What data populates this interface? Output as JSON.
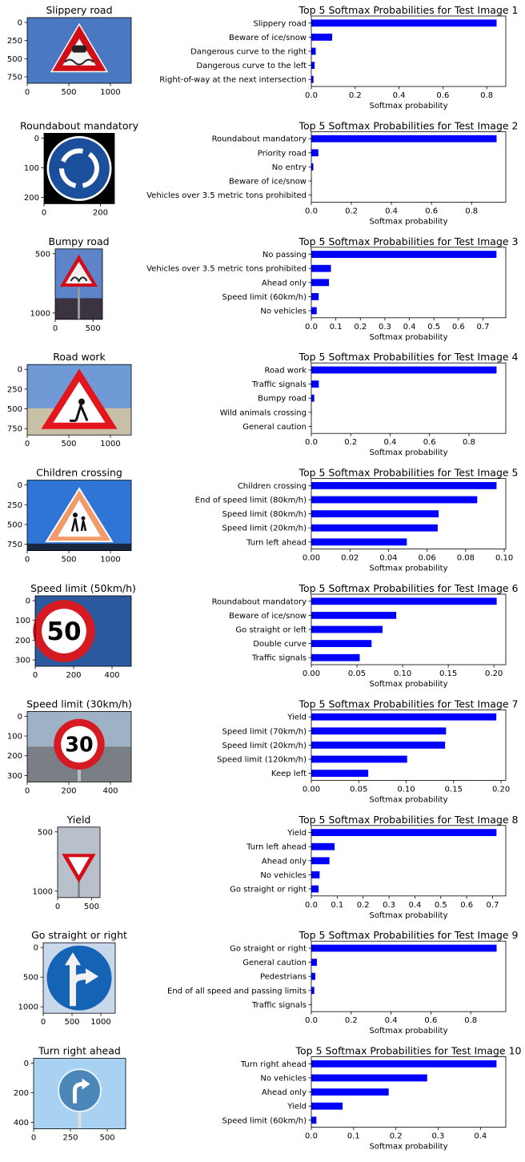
{
  "xlabel": "Softmax probability",
  "bar_color": "#0000ff",
  "rows": [
    {
      "image": {
        "title": "Slippery road",
        "icon": "slippery-road-sign-icon",
        "xticks": [
          "0",
          "500",
          "1000"
        ],
        "yticks": [
          "0",
          "250",
          "500",
          "750"
        ]
      },
      "chart_data": {
        "type": "bar",
        "title": "Top 5 Softmax Probabilities for Test Image 1",
        "xlabel": "Softmax probability",
        "categories": [
          "Slippery road",
          "Beware of ice/snow",
          "Dangerous curve to the right",
          "Dangerous curve to the left",
          "Right-of-way at the next intersection"
        ],
        "values": [
          0.845,
          0.095,
          0.02,
          0.015,
          0.01
        ],
        "xlim": [
          0,
          0.887
        ],
        "xticks": [
          0,
          0.2,
          0.4,
          0.6,
          0.8
        ],
        "xtick_labels": [
          "0.0",
          "0.2",
          "0.4",
          "0.6",
          "0.8"
        ]
      }
    },
    {
      "image": {
        "title": "Roundabout mandatory",
        "icon": "roundabout-sign-icon",
        "xticks": [
          "0",
          "200"
        ],
        "yticks": [
          "0",
          "100",
          "200"
        ]
      },
      "chart_data": {
        "type": "bar",
        "title": "Top 5 Softmax Probabilities for Test Image 2",
        "xlabel": "Softmax probability",
        "categories": [
          "Roundabout mandatory",
          "Priority road",
          "No entry",
          "Beware of ice/snow",
          "Vehicles over 3.5 metric tons prohibited"
        ],
        "values": [
          0.925,
          0.035,
          0.01,
          0.002,
          0.001
        ],
        "xlim": [
          0,
          0.971
        ],
        "xticks": [
          0,
          0.2,
          0.4,
          0.6,
          0.8
        ],
        "xtick_labels": [
          "0.0",
          "0.2",
          "0.4",
          "0.6",
          "0.8"
        ]
      }
    },
    {
      "image": {
        "title": "Bumpy road",
        "icon": "bumpy-road-sign-icon",
        "xticks": [
          "0",
          "500"
        ],
        "yticks": [
          "500",
          "1000"
        ]
      },
      "chart_data": {
        "type": "bar",
        "title": "Top 5 Softmax Probabilities for Test Image 3",
        "xlabel": "Softmax probability",
        "categories": [
          "No passing",
          "Vehicles over 3.5 metric tons prohibited",
          "Ahead only",
          "Speed limit (60km/h)",
          "No vehicles"
        ],
        "values": [
          0.755,
          0.08,
          0.072,
          0.03,
          0.022
        ],
        "xlim": [
          0,
          0.793
        ],
        "xticks": [
          0,
          0.1,
          0.2,
          0.3,
          0.4,
          0.5,
          0.6,
          0.7
        ],
        "xtick_labels": [
          "0.0",
          "0.1",
          "0.2",
          "0.3",
          "0.4",
          "0.5",
          "0.6",
          "0.7"
        ]
      }
    },
    {
      "image": {
        "title": "Road work",
        "icon": "road-work-sign-icon",
        "xticks": [
          "0",
          "500",
          "1000"
        ],
        "yticks": [
          "0",
          "250",
          "500",
          "750"
        ]
      },
      "chart_data": {
        "type": "bar",
        "title": "Top 5 Softmax Probabilities for Test Image 4",
        "xlabel": "Softmax probability",
        "categories": [
          "Road work",
          "Traffic signals",
          "Bumpy road",
          "Wild animals crossing",
          "General caution"
        ],
        "values": [
          0.94,
          0.038,
          0.015,
          0.002,
          0.001
        ],
        "xlim": [
          0,
          0.987
        ],
        "xticks": [
          0,
          0.2,
          0.4,
          0.6,
          0.8
        ],
        "xtick_labels": [
          "0.0",
          "0.2",
          "0.4",
          "0.6",
          "0.8"
        ]
      }
    },
    {
      "image": {
        "title": "Children crossing",
        "icon": "children-crossing-sign-icon",
        "xticks": [
          "0",
          "500",
          "1000"
        ],
        "yticks": [
          "0",
          "250",
          "500",
          "750"
        ]
      },
      "chart_data": {
        "type": "bar",
        "title": "Top 5 Softmax Probabilities for Test Image 5",
        "xlabel": "Softmax probability",
        "categories": [
          "Children crossing",
          "End of speed limit (80km/h)",
          "Speed limit (80km/h)",
          "Speed limit (20km/h)",
          "Turn left ahead"
        ],
        "values": [
          0.096,
          0.086,
          0.066,
          0.0655,
          0.0495
        ],
        "xlim": [
          0,
          0.1008
        ],
        "xticks": [
          0,
          0.02,
          0.04,
          0.06,
          0.08,
          0.1
        ],
        "xtick_labels": [
          "0.00",
          "0.02",
          "0.04",
          "0.06",
          "0.08",
          "0.10"
        ]
      }
    },
    {
      "image": {
        "title": "Speed limit (50km/h)",
        "icon": "speed-limit-50-sign-icon",
        "sign_text": "50",
        "xticks": [
          "0",
          "200",
          "400"
        ],
        "yticks": [
          "0",
          "100",
          "200",
          "300"
        ]
      },
      "chart_data": {
        "type": "bar",
        "title": "Top 5 Softmax Probabilities for Test Image 6",
        "xlabel": "Softmax probability",
        "categories": [
          "Roundabout mandatory",
          "Beware of ice/snow",
          "Go straight or left",
          "Double curve",
          "Traffic signals"
        ],
        "values": [
          0.203,
          0.093,
          0.078,
          0.066,
          0.053
        ],
        "xlim": [
          0,
          0.213
        ],
        "xticks": [
          0,
          0.05,
          0.1,
          0.15,
          0.2
        ],
        "xtick_labels": [
          "0.00",
          "0.05",
          "0.10",
          "0.15",
          "0.20"
        ]
      }
    },
    {
      "image": {
        "title": "Speed limit (30km/h)",
        "icon": "speed-limit-30-sign-icon",
        "sign_text": "30",
        "xticks": [
          "0",
          "200",
          "400"
        ],
        "yticks": [
          "0",
          "100",
          "200",
          "300"
        ]
      },
      "chart_data": {
        "type": "bar",
        "title": "Top 5 Softmax Probabilities for Test Image 7",
        "xlabel": "Softmax probability",
        "categories": [
          "Yield",
          "Speed limit (70km/h)",
          "Speed limit (20km/h)",
          "Speed limit (120km/h)",
          "Keep left"
        ],
        "values": [
          0.195,
          0.142,
          0.141,
          0.101,
          0.06
        ],
        "xlim": [
          0,
          0.205
        ],
        "xticks": [
          0,
          0.05,
          0.1,
          0.15,
          0.2
        ],
        "xtick_labels": [
          "0.00",
          "0.05",
          "0.10",
          "0.15",
          "0.20"
        ]
      }
    },
    {
      "image": {
        "title": "Yield",
        "icon": "yield-sign-icon",
        "xticks": [
          "0",
          "500"
        ],
        "yticks": [
          "500",
          "1000"
        ]
      },
      "chart_data": {
        "type": "bar",
        "title": "Top 5 Softmax Probabilities for Test Image 8",
        "xlabel": "Softmax probability",
        "categories": [
          "Yield",
          "Turn left ahead",
          "Ahead only",
          "No vehicles",
          "Go straight or right"
        ],
        "values": [
          0.715,
          0.09,
          0.07,
          0.032,
          0.028
        ],
        "xlim": [
          0,
          0.751
        ],
        "xticks": [
          0,
          0.1,
          0.2,
          0.3,
          0.4,
          0.5,
          0.6,
          0.7
        ],
        "xtick_labels": [
          "0.0",
          "0.1",
          "0.2",
          "0.3",
          "0.4",
          "0.5",
          "0.6",
          "0.7"
        ]
      }
    },
    {
      "image": {
        "title": "Go straight or right",
        "icon": "go-straight-or-right-sign-icon",
        "xticks": [
          "0",
          "500",
          "1000"
        ],
        "yticks": [
          "0",
          "500",
          "1000"
        ]
      },
      "chart_data": {
        "type": "bar",
        "title": "Top 5 Softmax Probabilities for Test Image 9",
        "xlabel": "Softmax probability",
        "categories": [
          "Go straight or right",
          "General caution",
          "Pedestrians",
          "End of all speed and passing limits",
          "Traffic signals"
        ],
        "values": [
          0.93,
          0.028,
          0.02,
          0.015,
          0.002
        ],
        "xlim": [
          0,
          0.976
        ],
        "xticks": [
          0,
          0.2,
          0.4,
          0.6,
          0.8
        ],
        "xtick_labels": [
          "0.0",
          "0.2",
          "0.4",
          "0.6",
          "0.8"
        ]
      }
    },
    {
      "image": {
        "title": "Turn right ahead",
        "icon": "turn-right-ahead-sign-icon",
        "xticks": [
          "0",
          "250",
          "500"
        ],
        "yticks": [
          "0",
          "200",
          "400"
        ]
      },
      "chart_data": {
        "type": "bar",
        "title": "Top 5 Softmax Probabilities for Test Image 10",
        "xlabel": "Softmax probability",
        "categories": [
          "Turn right ahead",
          "No vehicles",
          "Ahead only",
          "Yield",
          "Speed limit (60km/h)"
        ],
        "values": [
          0.438,
          0.274,
          0.183,
          0.074,
          0.012
        ],
        "xlim": [
          0,
          0.46
        ],
        "xticks": [
          0,
          0.1,
          0.2,
          0.3,
          0.4
        ],
        "xtick_labels": [
          "0.0",
          "0.1",
          "0.2",
          "0.3",
          "0.4"
        ]
      }
    }
  ]
}
